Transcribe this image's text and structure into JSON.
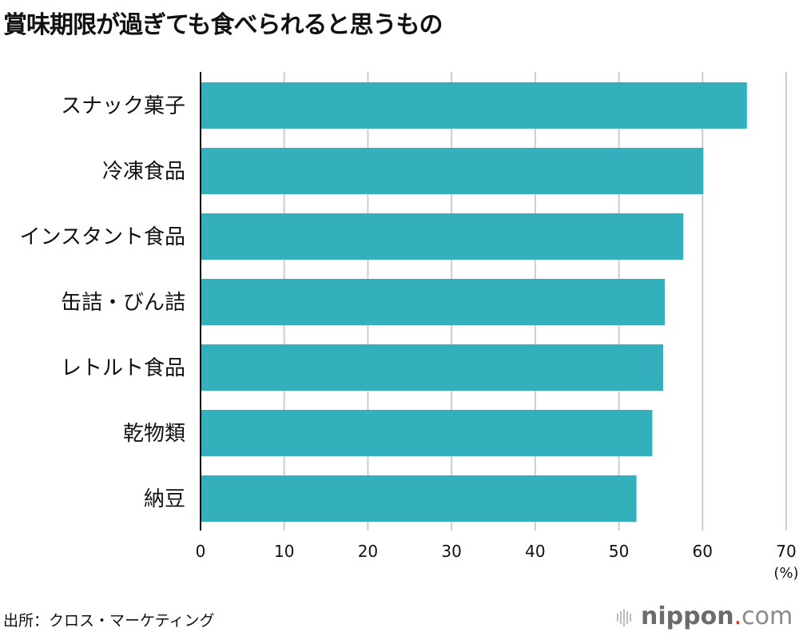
{
  "title": "賞味期限が過ぎても食べられると思うもの",
  "source": "出所：クロス・マーケティング",
  "logo": {
    "name": "nippon",
    "dot": ".",
    "suffix": "com",
    "dot_color": "#e8262a"
  },
  "chart_data": {
    "type": "bar",
    "orientation": "horizontal",
    "categories": [
      "スナック菓子",
      "冷凍食品",
      "インスタント食品",
      "缶詰・びん詰",
      "レトルト食品",
      "乾物類",
      "納豆"
    ],
    "values": [
      65.3,
      60.1,
      57.7,
      55.5,
      55.3,
      54.0,
      52.1
    ],
    "xlim": [
      0,
      70
    ],
    "xticks": [
      "0",
      "10",
      "20",
      "30",
      "40",
      "50",
      "60",
      "70"
    ],
    "xunit": "(%)",
    "grid": true,
    "bar_color": "#34b0bd",
    "grid_color": "#cccccc"
  }
}
